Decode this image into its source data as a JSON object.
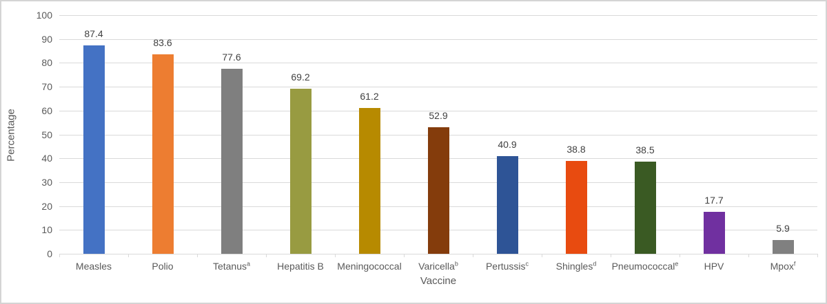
{
  "chart_data": {
    "type": "bar",
    "title": "",
    "xlabel": "Vaccine",
    "ylabel": "Percentage",
    "ylim": [
      0,
      100
    ],
    "yticks": [
      0,
      10,
      20,
      30,
      40,
      50,
      60,
      70,
      80,
      90,
      100
    ],
    "grid": true,
    "legend": "none",
    "categories": [
      {
        "label": "Measles",
        "sup": ""
      },
      {
        "label": "Polio",
        "sup": ""
      },
      {
        "label": "Tetanus",
        "sup": "a"
      },
      {
        "label": "Hepatitis B",
        "sup": ""
      },
      {
        "label": "Meningococcal",
        "sup": ""
      },
      {
        "label": "Varicella",
        "sup": "b"
      },
      {
        "label": "Pertussis",
        "sup": "c"
      },
      {
        "label": "Shingles",
        "sup": "d"
      },
      {
        "label": "Pneumococcal",
        "sup": "e"
      },
      {
        "label": "HPV",
        "sup": ""
      },
      {
        "label": "Mpox",
        "sup": "f"
      }
    ],
    "values": [
      87.4,
      83.6,
      77.6,
      69.2,
      61.2,
      52.9,
      40.9,
      38.8,
      38.5,
      17.7,
      5.9
    ],
    "value_labels": [
      "87.4",
      "83.6",
      "77.6",
      "69.2",
      "61.2",
      "52.9",
      "40.9",
      "38.8",
      "38.5",
      "17.7",
      "5.9"
    ],
    "bar_colors": [
      "#4472C4",
      "#ED7D31",
      "#7F7F7F",
      "#989B41",
      "#B78A00",
      "#843C0C",
      "#2E5496",
      "#E84B10",
      "#3A5A23",
      "#7030A0",
      "#808080"
    ]
  },
  "colors": {
    "gridline": "#D9D9D9",
    "axis_line": "#D9D9D9",
    "tick_mark": "#D9D9D9",
    "value_label_text": "#404040",
    "axis_label_text": "#595959",
    "canvas_border": "#D4D4D4",
    "background": "#FFFFFF"
  }
}
